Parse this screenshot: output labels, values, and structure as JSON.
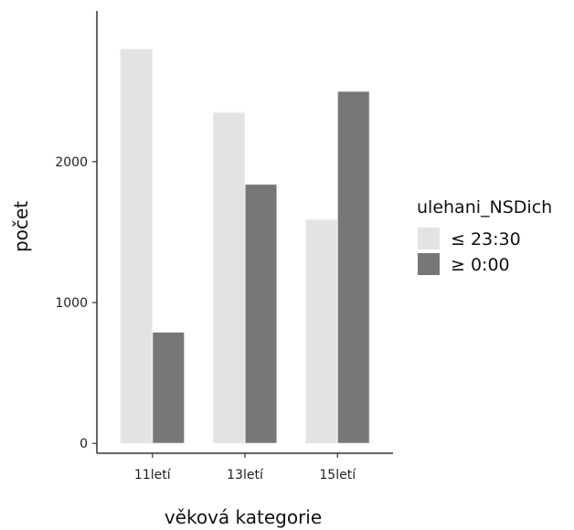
{
  "chart_data": {
    "type": "bar",
    "categories": [
      "11letí",
      "13letí",
      "15letí"
    ],
    "series": [
      {
        "name": "≤ 23:30",
        "color": "#e3e3e3",
        "values": [
          2800,
          2350,
          1590
        ]
      },
      {
        "name": "≥ 0:00",
        "color": "#777777",
        "values": [
          790,
          1840,
          2500
        ]
      }
    ],
    "xlabel": "věková kategorie",
    "ylabel": "počet",
    "yticks": [
      0,
      1000,
      2000
    ],
    "ylim": [
      -70,
      3070
    ],
    "grid": false,
    "legend": {
      "title": "ulehani_NSDich",
      "position": "right"
    }
  }
}
